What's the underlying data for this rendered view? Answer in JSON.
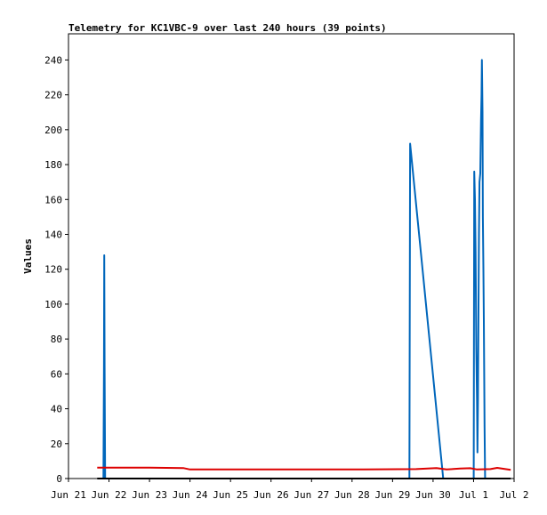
{
  "chart_data": {
    "type": "line",
    "title": "Telemetry for KC1VBC-9 over last 240 hours (39 points)",
    "ylabel": "Values",
    "xlabel": "",
    "ylim": [
      0,
      255
    ],
    "xlim": [
      0,
      264
    ],
    "grid": false,
    "legend": "none",
    "yticks": [
      0,
      20,
      40,
      60,
      80,
      100,
      120,
      140,
      160,
      180,
      200,
      220,
      240
    ],
    "xticks": [
      {
        "label": "Jun 21",
        "x": 0
      },
      {
        "label": "Jun 22",
        "x": 24
      },
      {
        "label": "Jun 23",
        "x": 48
      },
      {
        "label": "Jun 24",
        "x": 72
      },
      {
        "label": "Jun 25",
        "x": 96
      },
      {
        "label": "Jun 26",
        "x": 120
      },
      {
        "label": "Jun 27",
        "x": 144
      },
      {
        "label": "Jun 28",
        "x": 168
      },
      {
        "label": "Jun 29",
        "x": 192
      },
      {
        "label": "Jun 30",
        "x": 216
      },
      {
        "label": "Jul 1",
        "x": 240
      },
      {
        "label": "Jul 2",
        "x": 264
      }
    ],
    "series": [
      {
        "color": "#0066bb",
        "points": [
          [
            20.7,
            0
          ],
          [
            21.0,
            65
          ],
          [
            21.2,
            128
          ],
          [
            21.4,
            65
          ],
          [
            21.7,
            0
          ],
          [
            202.0,
            0
          ],
          [
            202.4,
            192
          ],
          [
            222.0,
            0
          ],
          [
            240.1,
            0
          ],
          [
            240.4,
            176
          ],
          [
            240.8,
            160
          ],
          [
            241.2,
            130
          ],
          [
            241.6,
            75
          ],
          [
            242.0,
            45
          ],
          [
            242.3,
            15
          ],
          [
            242.6,
            45
          ],
          [
            242.9,
            100
          ],
          [
            243.2,
            140
          ],
          [
            243.5,
            170
          ],
          [
            244.0,
            175
          ],
          [
            244.4,
            205
          ],
          [
            244.7,
            220
          ],
          [
            244.9,
            240
          ],
          [
            245.1,
            228
          ],
          [
            245.3,
            210
          ],
          [
            245.5,
            150
          ],
          [
            245.8,
            120
          ],
          [
            246.1,
            90
          ],
          [
            246.5,
            30
          ],
          [
            246.8,
            0
          ]
        ]
      },
      {
        "color": "#dd0000",
        "points": [
          [
            17,
            6.2
          ],
          [
            48,
            6.2
          ],
          [
            68,
            6.0
          ],
          [
            72,
            5.2
          ],
          [
            120,
            5.2
          ],
          [
            175,
            5.2
          ],
          [
            206,
            5.4
          ],
          [
            218,
            6.0
          ],
          [
            224,
            5.2
          ],
          [
            232,
            5.7
          ],
          [
            238,
            5.9
          ],
          [
            242,
            5.2
          ],
          [
            250,
            5.4
          ],
          [
            254,
            6.1
          ],
          [
            262,
            5.0
          ]
        ]
      },
      {
        "color": "#000000",
        "points": [
          [
            17,
            0
          ],
          [
            262,
            0
          ]
        ]
      }
    ]
  }
}
